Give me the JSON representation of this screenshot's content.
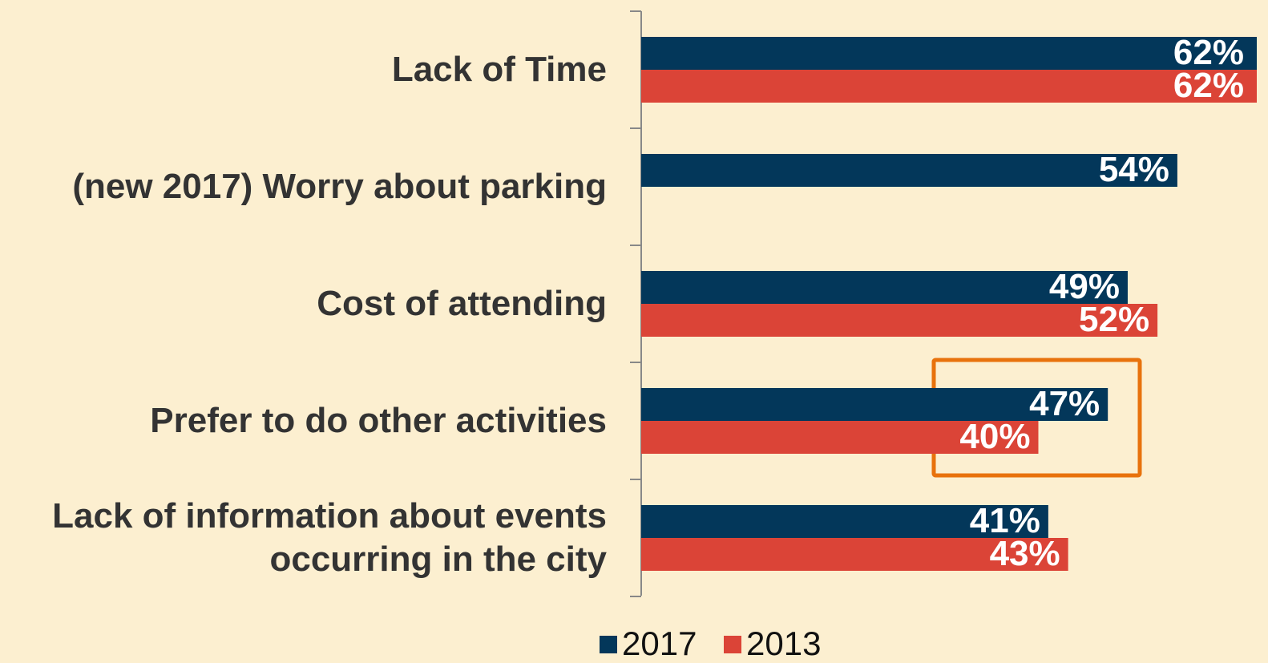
{
  "chart_data": {
    "type": "bar",
    "orientation": "horizontal",
    "categories": [
      "Lack of Time",
      "(new 2017) Worry about parking",
      "Cost of attending",
      "Prefer to do other activities",
      "Lack of information about events occurring in the city"
    ],
    "series": [
      {
        "name": "2017",
        "color": "#03375a",
        "values": [
          62,
          54,
          49,
          47,
          41
        ],
        "value_labels": [
          "62%",
          "54%",
          "49%",
          "47%",
          "41%"
        ]
      },
      {
        "name": "2013",
        "color": "#db4437",
        "values": [
          62,
          null,
          52,
          40,
          43
        ],
        "value_labels": [
          "62%",
          null,
          "52%",
          "40%",
          "43%"
        ]
      }
    ],
    "xlim": [
      0,
      62
    ],
    "legend": "bottom"
  }
}
